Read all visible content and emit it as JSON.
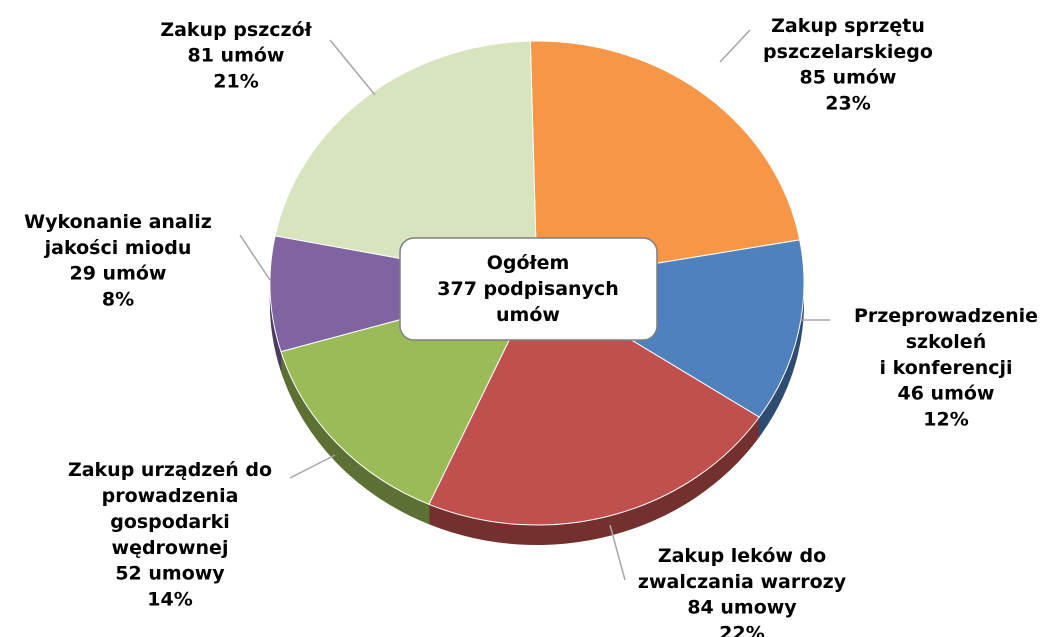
{
  "chart_data": {
    "type": "pie",
    "categories": [
      "Zakup sprzętu\npszczelarskiego",
      "Przeprowadzenie\nszkoleń\ni konferencji",
      "Zakup leków do\nzwalczania warrozy",
      "Zakup urządzeń do\nprowadzenia\ngospodarki\nwędrownej",
      "Wykonanie analiz\njakości miodu",
      "Zakup pszczół"
    ],
    "values": [
      85,
      46,
      84,
      52,
      29,
      81
    ],
    "value_labels": [
      "85 umów",
      "46 umów",
      "84 umowy",
      "52 umowy",
      "29 umów",
      "81 umów"
    ],
    "percent_labels": [
      "23%",
      "12%",
      "22%",
      "14%",
      "8%",
      "21%"
    ],
    "colors": [
      "#f79646",
      "#4f81bd",
      "#c0504d",
      "#9bbb59",
      "#8064a2",
      "#d7e4bd"
    ],
    "center_label": "Ogółem\n377 podpisanych\numów"
  }
}
